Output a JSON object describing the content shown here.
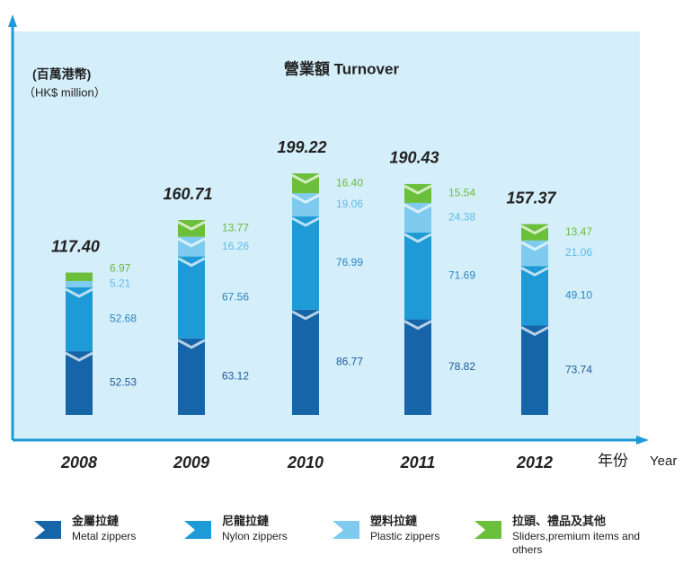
{
  "chart_data": {
    "type": "bar",
    "stacked": true,
    "title": "營業額  Turnover",
    "y_label": "(百萬港幣)",
    "y_label_en": "（HK$ million）",
    "x_label": "年份",
    "x_label_en": "Year",
    "categories": [
      "2008",
      "2009",
      "2010",
      "2011",
      "2012"
    ],
    "ylim": [
      0,
      320
    ],
    "series": [
      {
        "name": "金屬拉鏈",
        "name_en": "Metal zippers",
        "color": "#1565a8",
        "label_color": "#1f5b9a",
        "values": [
          52.53,
          63.12,
          86.77,
          78.82,
          73.74
        ],
        "value_labels": [
          "52.53",
          "63.12",
          "86.77",
          "78.82",
          "73.74"
        ]
      },
      {
        "name": "尼龍拉鏈",
        "name_en": "Nylon zippers",
        "color": "#1e9ad6",
        "label_color": "#2a86c4",
        "values": [
          52.68,
          67.56,
          76.99,
          71.69,
          49.1
        ],
        "value_labels": [
          "52.68",
          "67.56",
          "76.99",
          "71.69",
          "49.10"
        ]
      },
      {
        "name": "塑料拉鏈",
        "name_en": "Plastic zippers",
        "color": "#7fcbef",
        "label_color": "#5fbbe8",
        "values": [
          5.21,
          16.26,
          19.06,
          24.38,
          21.06
        ],
        "value_labels": [
          "5.21",
          "16.26",
          "19.06",
          "24.38",
          "21.06"
        ]
      },
      {
        "name": "拉頭、禮品及其他",
        "name_en": "Sliders,premium items and others",
        "color": "#6bbf3a",
        "label_color": "#6dbb3a",
        "values": [
          6.97,
          13.77,
          16.4,
          15.54,
          13.47
        ],
        "value_labels": [
          "6.97",
          "13.77",
          "16.40",
          "15.54",
          "13.47"
        ]
      }
    ],
    "totals": {
      "values": [
        117.4,
        160.71,
        199.22,
        190.43,
        157.37
      ],
      "value_labels": [
        "117.40",
        "160.71",
        "199.22",
        "190.43",
        "157.37"
      ]
    }
  }
}
